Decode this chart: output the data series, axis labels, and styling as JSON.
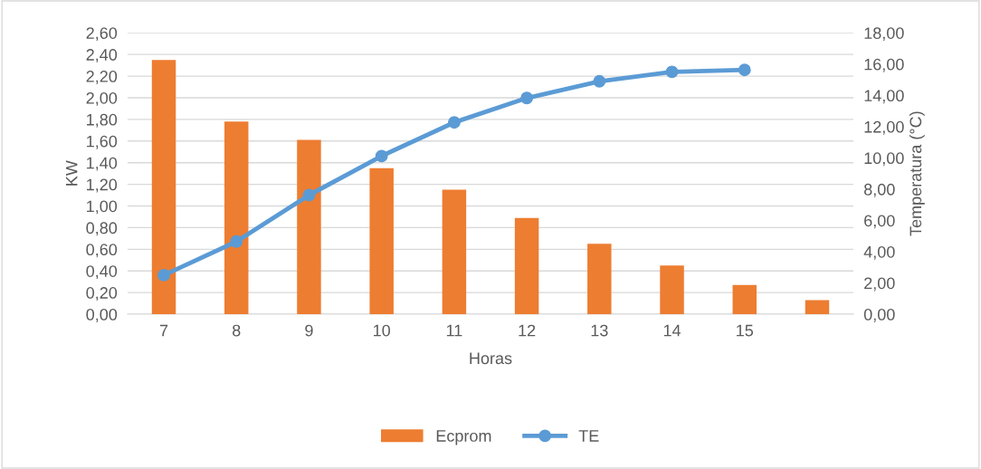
{
  "chart_data": {
    "type": "bar",
    "xlabel": "Horas",
    "ylabel": "KW",
    "y2label": "Temperatura (°C)",
    "categories": [
      "7",
      "8",
      "9",
      "10",
      "11",
      "12",
      "13",
      "14",
      "15",
      null
    ],
    "series": [
      {
        "name": "Ecprom",
        "color": "#ed7d31",
        "values": [
          2.35,
          1.78,
          1.61,
          1.35,
          1.15,
          0.89,
          0.65,
          0.45,
          0.27,
          0.13
        ]
      },
      {
        "name": "TE",
        "type": "line",
        "axis": "y2",
        "color": "#5b9bd5",
        "marker": "circle",
        "values": [
          2.5,
          4.65,
          7.62,
          10.12,
          12.27,
          13.83,
          14.9,
          15.5,
          15.63,
          null
        ]
      }
    ],
    "ylim": [
      0,
      2.6
    ],
    "yticks": [
      {
        "value": 0,
        "label": "0,00"
      },
      {
        "value": 0.2,
        "label": "0,20"
      },
      {
        "value": 0.4,
        "label": "0,40"
      },
      {
        "value": 0.6,
        "label": "0,60"
      },
      {
        "value": 0.8,
        "label": "0,80"
      },
      {
        "value": 1.0,
        "label": "1,00"
      },
      {
        "value": 1.2,
        "label": "1,20"
      },
      {
        "value": 1.4,
        "label": "1,40"
      },
      {
        "value": 1.6,
        "label": "1,60"
      },
      {
        "value": 1.8,
        "label": "1,80"
      },
      {
        "value": 2.0,
        "label": "2,00"
      },
      {
        "value": 2.2,
        "label": "2,20"
      },
      {
        "value": 2.4,
        "label": "2,40"
      },
      {
        "value": 2.6,
        "label": "2,60"
      }
    ],
    "y2lim": [
      0,
      18
    ],
    "y2ticks": [
      {
        "value": 0,
        "label": "0,00"
      },
      {
        "value": 2,
        "label": "2,00"
      },
      {
        "value": 4,
        "label": "4,00"
      },
      {
        "value": 6,
        "label": "6,00"
      },
      {
        "value": 8,
        "label": "8,00"
      },
      {
        "value": 10,
        "label": "10,00"
      },
      {
        "value": 12,
        "label": "12,00"
      },
      {
        "value": 14,
        "label": "14,00"
      },
      {
        "value": 16,
        "label": "16,00"
      },
      {
        "value": 18,
        "label": "18,00"
      }
    ],
    "grid": "y",
    "legend": "bottom"
  }
}
